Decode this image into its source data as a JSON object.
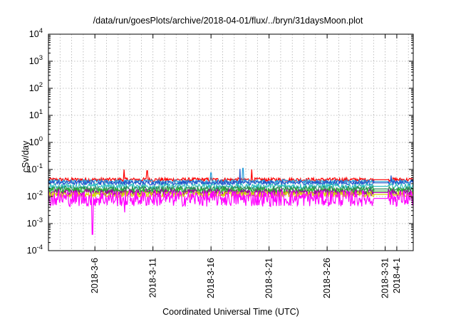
{
  "chart_data": {
    "type": "line",
    "title": "/data/run/goesPlots/archive/2018-04-01/flux/../bryn/31daysMoon.plot",
    "xlabel": "Coordinated Universal Time (UTC)",
    "ylabel": "cSv/day",
    "yscale": "log",
    "ylim": [
      0.0001,
      10000
    ],
    "xlim": [
      "2018-03-02",
      "2018-04-02T10:00"
    ],
    "grid": true,
    "y_ticks": [
      {
        "value": 0.0001,
        "base": "10",
        "exp": "-4"
      },
      {
        "value": 0.001,
        "base": "10",
        "exp": "-3"
      },
      {
        "value": 0.01,
        "base": "10",
        "exp": "-2"
      },
      {
        "value": 0.1,
        "base": "10",
        "exp": "-1"
      },
      {
        "value": 1,
        "base": "10",
        "exp": "0"
      },
      {
        "value": 10,
        "base": "10",
        "exp": "1"
      },
      {
        "value": 100,
        "base": "10",
        "exp": "2"
      },
      {
        "value": 1000,
        "base": "10",
        "exp": "3"
      },
      {
        "value": 10000,
        "base": "10",
        "exp": "4"
      }
    ],
    "x_ticks": [
      {
        "date": "2018-03-06",
        "label": "2018-3-6"
      },
      {
        "date": "2018-03-11",
        "label": "2018-3-11"
      },
      {
        "date": "2018-03-16",
        "label": "2018-3-16"
      },
      {
        "date": "2018-03-21",
        "label": "2018-3-21"
      },
      {
        "date": "2018-03-26",
        "label": "2018-3-26"
      },
      {
        "date": "2018-03-31",
        "label": "2018-3-31"
      },
      {
        "date": "2018-04-01",
        "label": "2018-4-1"
      }
    ],
    "series": [
      {
        "color": "#ff0000",
        "baseline": 0.042,
        "spread": 0.07,
        "spikes": [
          [
            "2018-03-08T12:00",
            0.1
          ],
          [
            "2018-03-10T12:00",
            0.09
          ],
          [
            "2018-03-19T12:00",
            0.1
          ]
        ]
      },
      {
        "color": "#2a9fd8",
        "baseline": 0.036,
        "spread": 0.07,
        "spikes": [
          [
            "2018-03-18T18:00",
            0.11
          ],
          [
            "2018-03-16T00:00",
            0.075
          ]
        ]
      },
      {
        "color": "#2254cc",
        "baseline": 0.032,
        "spread": 0.08,
        "spikes": [
          [
            "2018-03-18T12:00",
            0.105
          ],
          [
            "2018-03-31T12:00",
            0.06
          ]
        ]
      },
      {
        "color": "#30c0c0",
        "baseline": 0.024,
        "spread": 0.1,
        "spikes": []
      },
      {
        "color": "#2e8b57",
        "baseline": 0.019,
        "spread": 0.1,
        "spikes": []
      },
      {
        "color": "#2ab82a",
        "baseline": 0.016,
        "spread": 0.1,
        "spikes": []
      },
      {
        "color": "#a000a0",
        "baseline": 0.014,
        "spread": 0.12,
        "spikes": []
      },
      {
        "color": "#d8d800",
        "baseline": 0.012,
        "spread": 0.1,
        "spikes": []
      },
      {
        "color": "#ff00ff",
        "baseline": 0.0085,
        "spread": 0.3,
        "spikes": [
          [
            "2018-03-05T19:00",
            0.0004
          ],
          [
            "2018-03-08T14:00",
            0.0026
          ]
        ]
      }
    ],
    "flat_segment": {
      "start": "2018-03-30T00:00",
      "end": "2018-03-31T06:00"
    }
  }
}
